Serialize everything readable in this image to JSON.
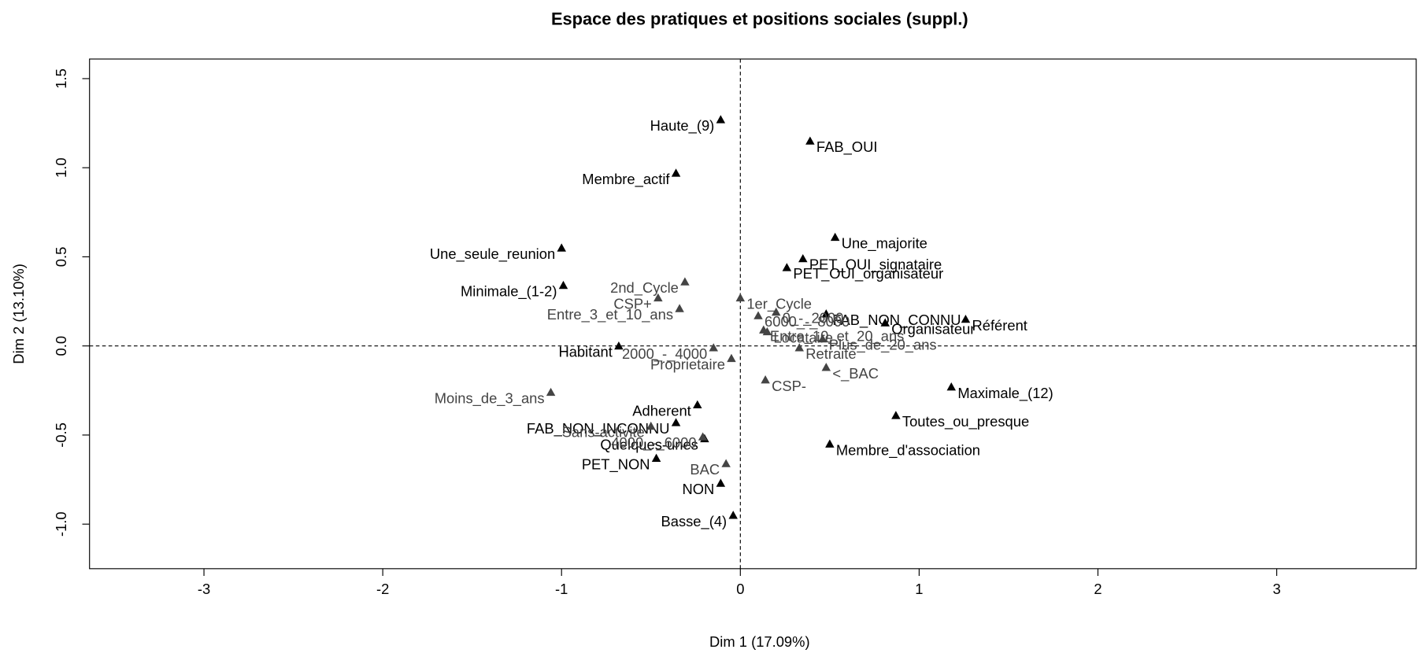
{
  "chart_data": {
    "type": "scatter",
    "title": "Espace des pratiques et positions sociales (suppl.)",
    "x_label": "Dim 1 (17.09%)",
    "y_label": "Dim 2 (13.10%)",
    "xlim": [
      -3.64,
      3.78
    ],
    "ylim": [
      -1.25,
      1.61
    ],
    "xticks": [
      -3,
      -2,
      -1,
      0,
      1,
      2,
      3
    ],
    "yticks": [
      {
        "value": -1,
        "label": "-1.0"
      },
      -0.5,
      {
        "value": 0,
        "label": "0.0"
      },
      0.5,
      {
        "value": 1,
        "label": "1.0"
      },
      1.5
    ],
    "series": [
      {
        "color": "#000000",
        "labels": [
          "Haute_(9)",
          "FAB_OUI",
          "Membre_actif",
          "Une_majorite",
          "Une_seule_reunion",
          "PET_OUI_signataire",
          "PET_OUI_organisateur",
          "Minimale_(1-2)",
          "FAB_NON_CONNU",
          "Référent",
          "Organisateur",
          "Habitant",
          "Maximale_(12)",
          "Adherent",
          "FAB_NON_INCONNU",
          "Toutes_ou_presque",
          "Quelques-unes",
          "Membre_d'association",
          "PET_NON",
          "NON",
          "Basse_(4)"
        ],
        "x": [
          -0.11,
          0.39,
          -0.36,
          0.53,
          -1.0,
          0.35,
          0.26,
          -0.99,
          0.48,
          1.26,
          0.81,
          -0.68,
          1.18,
          -0.24,
          -0.36,
          0.87,
          -0.2,
          0.5,
          -0.47,
          -0.11,
          -0.04
        ],
        "values": [
          1.27,
          1.15,
          0.97,
          0.61,
          0.55,
          0.49,
          0.44,
          0.34,
          0.18,
          0.15,
          0.13,
          0.0,
          -0.23,
          -0.33,
          -0.43,
          -0.39,
          -0.52,
          -0.55,
          -0.63,
          -0.77,
          -0.95
        ]
      },
      {
        "color": "#444444",
        "labels": [
          "2nd_Cycle",
          "CSP+",
          "1er_Cycle",
          "Entre_3_et_10_ans",
          "6000_-_8000",
          "0_-_2000",
          "Entre_10_et_20_ans",
          "Locataire",
          "Retraite",
          "Plus_de_20_ans",
          "2000_-_4000",
          "Proprietaire",
          "<_BAC",
          "CSP-",
          "Moins_de_3_ans",
          "4000_-_6000",
          "Sans-activite",
          "BAC"
        ],
        "x": [
          -0.31,
          -0.46,
          0.0,
          -0.34,
          0.1,
          0.2,
          0.13,
          0.15,
          0.33,
          0.46,
          -0.15,
          -0.05,
          0.48,
          0.14,
          -1.06,
          -0.21,
          -0.5,
          -0.08
        ],
        "values": [
          0.36,
          0.27,
          0.27,
          0.21,
          0.17,
          0.19,
          0.09,
          0.08,
          -0.01,
          0.04,
          -0.01,
          -0.07,
          -0.12,
          -0.19,
          -0.26,
          -0.51,
          -0.45,
          -0.66
        ]
      }
    ]
  }
}
